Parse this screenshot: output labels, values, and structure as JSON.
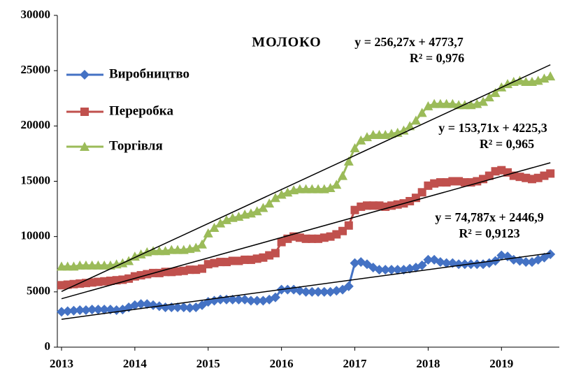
{
  "chart_data": {
    "type": "line",
    "title": "МОЛОКО",
    "categories": [
      "2013",
      null,
      null,
      null,
      null,
      null,
      null,
      null,
      null,
      null,
      null,
      null,
      "2014",
      null,
      null,
      null,
      null,
      null,
      null,
      null,
      null,
      null,
      null,
      null,
      "2015",
      null,
      null,
      null,
      null,
      null,
      null,
      null,
      null,
      null,
      null,
      null,
      "2016",
      null,
      null,
      null,
      null,
      null,
      null,
      null,
      null,
      null,
      null,
      null,
      "2017",
      null,
      null,
      null,
      null,
      null,
      null,
      null,
      null,
      null,
      null,
      null,
      "2018",
      null,
      null,
      null,
      null,
      null,
      null,
      null,
      null,
      null,
      null,
      null,
      "2019",
      null,
      null,
      null,
      null,
      null,
      null,
      null,
      null
    ],
    "ylim": [
      0,
      30000
    ],
    "yticks": [
      0,
      5000,
      10000,
      15000,
      20000,
      25000,
      30000
    ],
    "series": [
      {
        "name": "Виробництво",
        "color": "#4472c4",
        "marker": "diamond",
        "values": [
          3200,
          3250,
          3300,
          3350,
          3350,
          3400,
          3400,
          3400,
          3400,
          3350,
          3400,
          3600,
          3800,
          3900,
          3900,
          3800,
          3700,
          3600,
          3600,
          3600,
          3600,
          3550,
          3600,
          3800,
          4100,
          4200,
          4300,
          4300,
          4300,
          4300,
          4300,
          4200,
          4200,
          4200,
          4300,
          4500,
          5200,
          5200,
          5200,
          5100,
          5000,
          5000,
          5000,
          5000,
          5000,
          5100,
          5200,
          5500,
          7600,
          7700,
          7500,
          7200,
          7000,
          7000,
          7000,
          7000,
          7000,
          7100,
          7200,
          7400,
          7900,
          7900,
          7700,
          7600,
          7600,
          7500,
          7500,
          7500,
          7500,
          7500,
          7600,
          7800,
          8300,
          8200,
          7900,
          7800,
          7700,
          7700,
          7900,
          8100,
          8400
        ],
        "trend": {
          "equation": "y = 74,787x + 2446,9",
          "r2": "R² = 0,9123",
          "slope": 74.787,
          "intercept": 2446.9
        }
      },
      {
        "name": "Переробка",
        "color": "#c0504d",
        "marker": "square",
        "values": [
          5600,
          5650,
          5700,
          5750,
          5800,
          5850,
          5900,
          5950,
          6000,
          6050,
          6100,
          6200,
          6400,
          6500,
          6600,
          6700,
          6700,
          6800,
          6800,
          6850,
          6900,
          7000,
          7000,
          7100,
          7500,
          7600,
          7700,
          7700,
          7800,
          7800,
          7900,
          7900,
          8000,
          8100,
          8300,
          8500,
          9500,
          9800,
          10000,
          9900,
          9800,
          9800,
          9800,
          9900,
          10000,
          10200,
          10500,
          11000,
          12400,
          12700,
          12800,
          12800,
          12800,
          12700,
          12800,
          12900,
          13000,
          13200,
          13500,
          14000,
          14600,
          14800,
          14900,
          14900,
          15000,
          15000,
          14900,
          14900,
          15000,
          15200,
          15500,
          15900,
          16000,
          15800,
          15500,
          15400,
          15300,
          15200,
          15300,
          15500,
          15700
        ],
        "trend": {
          "equation": "y = 153,71x + 4225,3",
          "r2": "R² = 0,965",
          "slope": 153.71,
          "intercept": 4225.3
        }
      },
      {
        "name": "Торгівля",
        "color": "#9bbb59",
        "marker": "triangle",
        "values": [
          7300,
          7300,
          7300,
          7400,
          7400,
          7400,
          7400,
          7400,
          7400,
          7500,
          7600,
          7800,
          8200,
          8400,
          8600,
          8700,
          8700,
          8700,
          8800,
          8800,
          8800,
          8900,
          9000,
          9300,
          10300,
          10800,
          11200,
          11500,
          11700,
          11800,
          12000,
          12100,
          12300,
          12600,
          13000,
          13500,
          13800,
          14000,
          14200,
          14300,
          14300,
          14300,
          14300,
          14300,
          14400,
          14700,
          15500,
          16800,
          18000,
          18700,
          19000,
          19200,
          19200,
          19200,
          19300,
          19400,
          19600,
          20000,
          20500,
          21200,
          21800,
          22000,
          22000,
          22000,
          22000,
          21900,
          21900,
          21900,
          22000,
          22200,
          22600,
          23000,
          23500,
          23800,
          24000,
          24100,
          24000,
          24000,
          24100,
          24300,
          24500
        ],
        "trend": {
          "equation": "y = 256,27x + 4773,7",
          "r2": "R² = 0,976",
          "slope": 256.27,
          "intercept": 4773.7
        }
      }
    ]
  }
}
